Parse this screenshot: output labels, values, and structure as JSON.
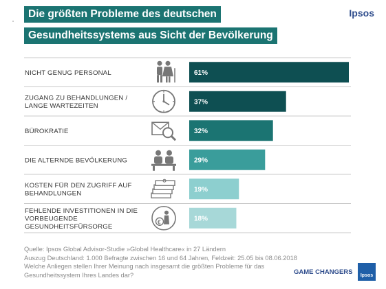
{
  "header": {
    "title_line1": "Die größten Probleme des deutschen",
    "title_line2": "Gesundheitssystems aus Sicht der Bevölkerung",
    "brand": "Ipsos"
  },
  "chart_data": {
    "type": "bar",
    "orientation": "horizontal",
    "categories": [
      [
        "NICHT GENUG PERSONAL"
      ],
      [
        "ZUGANG ZU BEHANDLUNGEN /",
        "LANGE WARTEZEITEN"
      ],
      [
        "BÜROKRATIE"
      ],
      [
        "DIE ALTERNDE BEVÖLKERUNG"
      ],
      [
        "KOSTEN FÜR DEN ZUGRIFF AUF",
        "BEHANDLUNGEN"
      ],
      [
        "FEHLENDE INVESTITIONEN IN DIE",
        "VORBEUGENDE",
        "GESUNDHEITSFÜRSORGE"
      ]
    ],
    "values": [
      61,
      37,
      32,
      29,
      19,
      18
    ],
    "value_labels": [
      "61%",
      "37%",
      "32%",
      "29%",
      "19%",
      "18%"
    ],
    "colors": [
      "#0e4f52",
      "#0e4f52",
      "#1b7472",
      "#3a9d9b",
      "#8dcfcf",
      "#a7d8d8"
    ],
    "icons": [
      "elderly-couple-icon",
      "clock-icon",
      "document-search-icon",
      "people-seated-icon",
      "money-stack-icon",
      "euro-person-icon"
    ],
    "xlim": [
      0,
      61
    ],
    "grid": false,
    "legend": "none",
    "title": "Die größten Probleme des deutschen Gesundheitssystems aus Sicht der Bevölkerung"
  },
  "footer": {
    "source": "Quelle: Ipsos Global Advisor-Studie »Global Healthcare« in 27 Ländern",
    "sample": "Auszug Deutschland: 1.000 Befragte zwischen 16 und 64 Jahren, Feldzeit: 25.05 bis 08.06.2018",
    "question": "Welche Anliegen stellen Ihrer Meinung nach insgesamt die größten Probleme für das Gesundheitssystem Ihres Landes dar?",
    "tagline": "GAME CHANGERS",
    "badge": "Ipsos"
  }
}
